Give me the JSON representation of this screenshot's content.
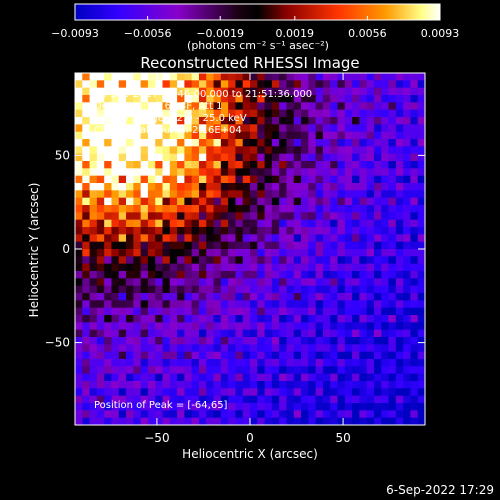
{
  "chart_data": {
    "type": "heatmap",
    "title": "Reconstructed RHESSI Image",
    "xlabel": "Heliocentric X (arcsec)",
    "ylabel": "Heliocentric Y (arcsec)",
    "xlim": [
      -94,
      94
    ],
    "ylim": [
      -94,
      94
    ],
    "x_ticks": [
      -50,
      0,
      50
    ],
    "y_ticks": [
      50,
      0,
      -50
    ],
    "x_tick_labels": [
      "−50",
      "0",
      "50"
    ],
    "y_tick_labels": [
      "50",
      "0",
      "−50"
    ],
    "grid": false,
    "colorbar": {
      "min": -0.0093,
      "max": 0.0093,
      "tick_values": [
        -0.0093,
        -0.0056,
        -0.0019,
        0.0019,
        0.0056,
        0.0093
      ],
      "tick_labels": [
        "−0.0093",
        "−0.0056",
        "−0.0019",
        "0.0019",
        "0.0056",
        "0.0093"
      ],
      "unit_label": "(photons cm⁻² s⁻¹ asec⁻²)",
      "colors": [
        "#0000c0",
        "#4400ff",
        "#8800cc",
        "#000000",
        "#b00000",
        "#ff3300",
        "#ff9900",
        "#ffff99",
        "#ffffff"
      ]
    },
    "peak": [
      -64,
      65
    ],
    "grid_cells": 48
  },
  "annotations": {
    "time_range": "23-Sep-2017 21:46:00.000 to 21:51:36.000",
    "detectors": "Detectors: 3F 6F 8F, Att 1",
    "energy": "Energy Range: 12.0 - 25.0 keV",
    "algorithm": "Clean   Total counts: 2.16E+04",
    "peak": "Position of Peak = [-64,65]"
  },
  "footer": {
    "timestamp": "6-Sep-2022 17:29"
  }
}
